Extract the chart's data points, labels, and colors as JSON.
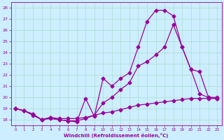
{
  "xlabel": "Windchill (Refroidissement éolien,°C)",
  "background_color": "#cceeff",
  "grid_color": "#aaddcc",
  "line_color": "#990099",
  "ylim": [
    17.5,
    28.5
  ],
  "xlim": [
    -0.5,
    23.5
  ],
  "yticks": [
    18,
    19,
    20,
    21,
    22,
    23,
    24,
    25,
    26,
    27,
    28
  ],
  "x_ticks": [
    0,
    1,
    2,
    3,
    4,
    5,
    6,
    7,
    8,
    9,
    10,
    11,
    12,
    13,
    14,
    15,
    16,
    17,
    18,
    19,
    20,
    21,
    22,
    23
  ],
  "line1_x": [
    0,
    1,
    2,
    3,
    4,
    5,
    6,
    7,
    8,
    9,
    10,
    11,
    12,
    13,
    14,
    15,
    16,
    17,
    18,
    19,
    20,
    21,
    22,
    23
  ],
  "line1_y": [
    19.0,
    18.8,
    18.5,
    18.0,
    18.2,
    18.0,
    17.9,
    17.8,
    19.9,
    18.3,
    21.7,
    21.0,
    21.7,
    22.2,
    24.5,
    26.8,
    27.8,
    27.8,
    27.3,
    24.5,
    22.5,
    20.3,
    20.0,
    20.0
  ],
  "line2_x": [
    0,
    1,
    2,
    3,
    4,
    5,
    6,
    7,
    8,
    9,
    10,
    11,
    12,
    13,
    14,
    15,
    16,
    17,
    18,
    19,
    20,
    21,
    22,
    23
  ],
  "line2_y": [
    19.0,
    18.8,
    18.5,
    18.0,
    18.1,
    18.0,
    17.9,
    17.9,
    18.1,
    18.4,
    19.5,
    20.0,
    20.7,
    21.3,
    22.8,
    23.2,
    23.8,
    24.5,
    26.5,
    24.5,
    22.5,
    22.3,
    20.0,
    19.9
  ],
  "line3_x": [
    0,
    1,
    2,
    3,
    4,
    5,
    6,
    7,
    8,
    9,
    10,
    11,
    12,
    13,
    14,
    15,
    16,
    17,
    18,
    19,
    20,
    21,
    22,
    23
  ],
  "line3_y": [
    19.0,
    18.8,
    18.4,
    18.0,
    18.2,
    18.1,
    18.1,
    18.1,
    18.2,
    18.4,
    18.6,
    18.7,
    18.9,
    19.1,
    19.3,
    19.4,
    19.5,
    19.6,
    19.7,
    19.8,
    19.9,
    19.9,
    19.9,
    19.9
  ]
}
